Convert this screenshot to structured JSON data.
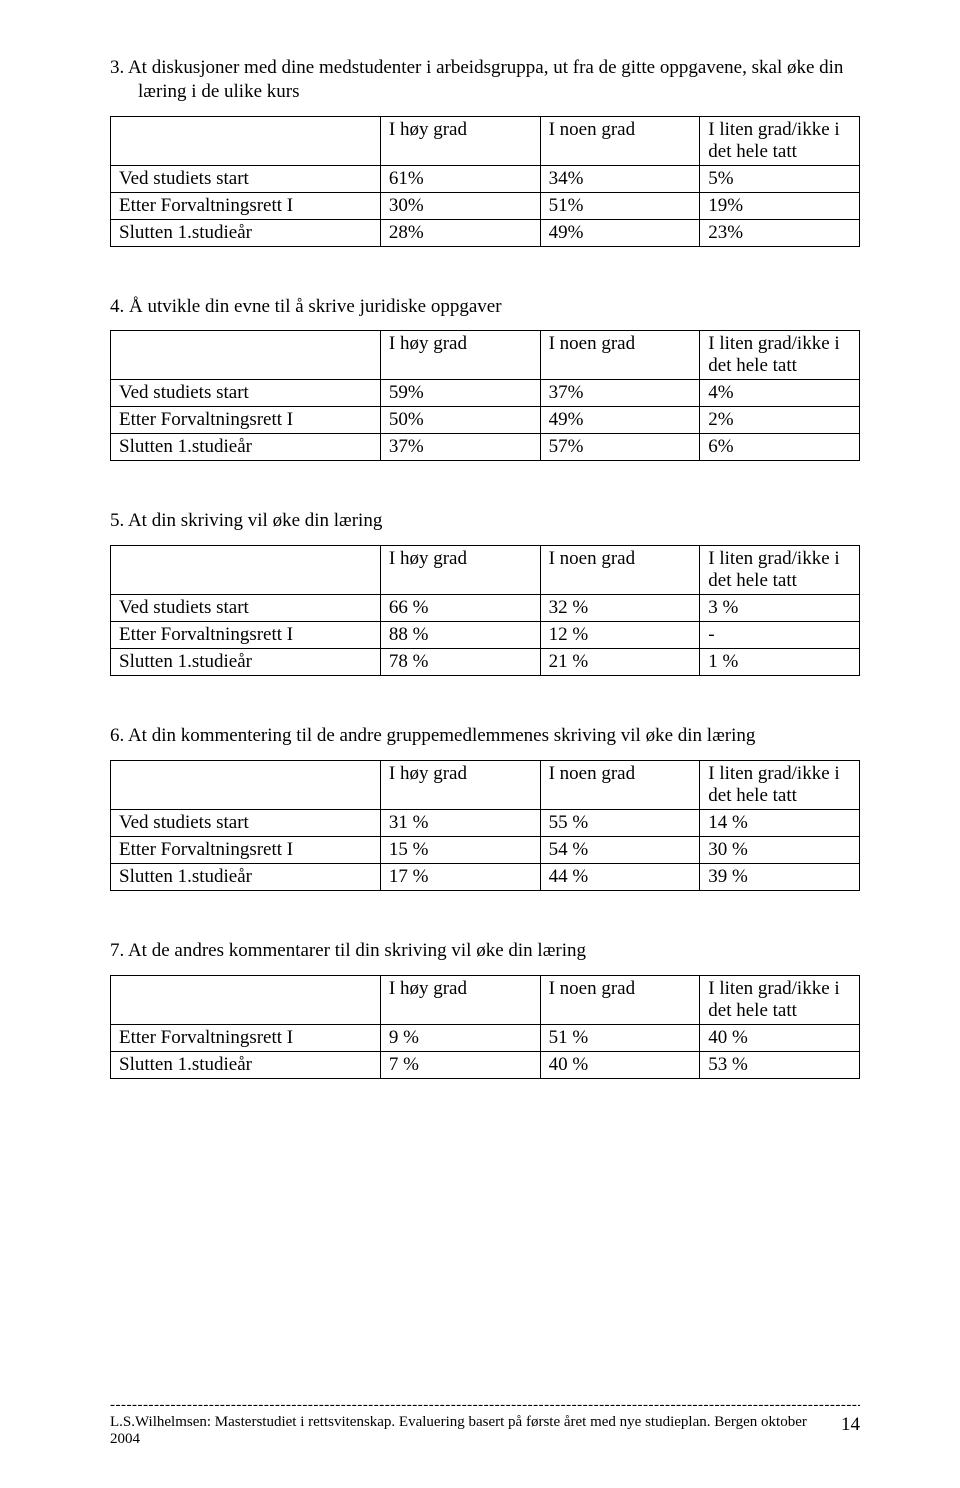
{
  "sections": [
    {
      "title": "3. At diskusjoner med dine medstudenter i arbeidsgruppa, ut fra de gitte oppgavene, skal øke din læring i de ulike kurs",
      "columns": [
        "I høy grad",
        "I noen grad",
        "I liten grad/ikke i det hele tatt"
      ],
      "rows": [
        {
          "label": "Ved studiets start",
          "v": [
            "61%",
            "34%",
            "5%"
          ]
        },
        {
          "label": "Etter Forvaltningsrett I",
          "v": [
            "30%",
            "51%",
            "19%"
          ]
        },
        {
          "label": "Slutten 1.studieår",
          "v": [
            "28%",
            "49%",
            "23%"
          ]
        }
      ]
    },
    {
      "title": "4. Å utvikle din evne til å skrive juridiske oppgaver",
      "columns": [
        "I høy grad",
        "I noen grad",
        "I liten grad/ikke i det hele tatt"
      ],
      "rows": [
        {
          "label": "Ved studiets start",
          "v": [
            "59%",
            "37%",
            "4%"
          ]
        },
        {
          "label": "Etter Forvaltningsrett I",
          "v": [
            "50%",
            "49%",
            "2%"
          ]
        },
        {
          "label": "Slutten 1.studieår",
          "v": [
            "37%",
            "57%",
            "6%"
          ]
        }
      ]
    },
    {
      "title": "5. At din skriving vil øke din læring",
      "columns": [
        "I høy grad",
        "I noen grad",
        "I liten grad/ikke i det hele tatt"
      ],
      "rows": [
        {
          "label": "Ved studiets start",
          "v": [
            "66 %",
            "32 %",
            "3 %"
          ]
        },
        {
          "label": "Etter Forvaltningsrett I",
          "v": [
            "88 %",
            "12 %",
            "-"
          ]
        },
        {
          "label": "Slutten 1.studieår",
          "v": [
            "78 %",
            "21 %",
            "1 %"
          ]
        }
      ]
    },
    {
      "title": "6. At din kommentering til de andre gruppemedlemmenes skriving vil øke din læring",
      "columns": [
        "I høy grad",
        "I noen grad",
        "I liten grad/ikke i det hele tatt"
      ],
      "rows": [
        {
          "label": "Ved studiets start",
          "v": [
            "31 %",
            "55 %",
            "14 %"
          ]
        },
        {
          "label": "Etter Forvaltningsrett I",
          "v": [
            "15 %",
            "54 %",
            "30 %"
          ]
        },
        {
          "label": "Slutten 1.studieår",
          "v": [
            "17 %",
            "44 %",
            "39 %"
          ]
        }
      ]
    },
    {
      "title": "7. At de andres kommentarer til din skriving vil øke din læring",
      "columns": [
        "I høy grad",
        "I noen grad",
        "I liten grad/ikke i det hele tatt"
      ],
      "rows": [
        {
          "label": "Etter Forvaltningsrett I",
          "v": [
            "9 %",
            "51 %",
            "40 %"
          ]
        },
        {
          "label": "Slutten 1.studieår",
          "v": [
            "7 %",
            "40 %",
            "53 %"
          ]
        }
      ]
    }
  ],
  "footer": {
    "dashes": "------------------------------------------------------------------------------------------------------------------------------------------------------------------",
    "text": "L.S.Wilhelmsen: Masterstudiet i rettsvitenskap. Evaluering basert på første året med nye studieplan. Bergen oktober 2004",
    "page": "14"
  }
}
